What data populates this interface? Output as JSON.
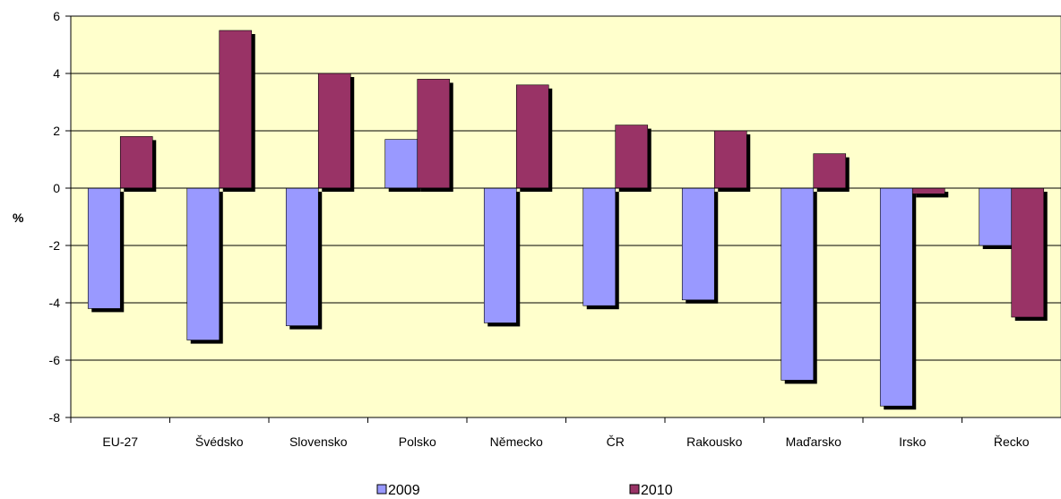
{
  "chart_data": {
    "type": "bar",
    "title": "",
    "xlabel": "",
    "ylabel": "%",
    "ylim": [
      -8,
      6
    ],
    "yticks": [
      6,
      4,
      2,
      0,
      -2,
      -4,
      -6,
      -8
    ],
    "grid": true,
    "legend_position": "bottom",
    "categories": [
      "EU-27",
      "Švédsko",
      "Slovensko",
      "Polsko",
      "Německo",
      "ČR",
      "Rakousko",
      "Maďarsko",
      "Irsko",
      "Řecko"
    ],
    "series": [
      {
        "name": "2009",
        "color": "#9999ff",
        "values": [
          -4.2,
          -5.3,
          -4.8,
          1.7,
          -4.7,
          -4.1,
          -3.9,
          -6.7,
          -7.6,
          -2.0
        ]
      },
      {
        "name": "2010",
        "color": "#993366",
        "values": [
          1.8,
          5.5,
          4.0,
          3.8,
          3.6,
          2.2,
          2.0,
          1.2,
          -0.2,
          -4.5
        ]
      }
    ],
    "plot_background": "#ffffcc"
  }
}
